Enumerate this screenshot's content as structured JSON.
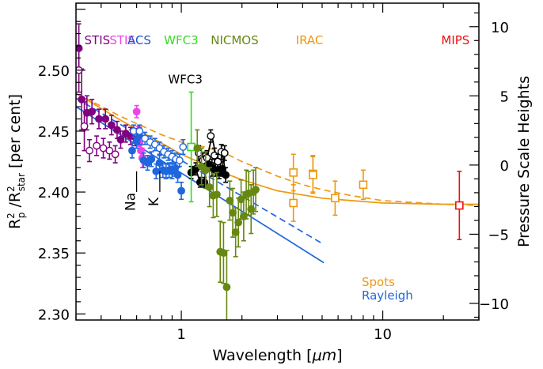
{
  "chart_data": {
    "type": "scatter",
    "xscale": "log",
    "xlim": [
      0.3,
      30
    ],
    "ylim": [
      2.295,
      2.555
    ],
    "y2lim": [
      -11.2,
      11.7
    ],
    "xlabel": "Wavelength [",
    "xlabel_unit": "μm",
    "xlabel_close": "]",
    "ylabel": "R²p / R²star  [per cent]",
    "ylabel_parts": {
      "R1": "R",
      "sup1": "2",
      "sub1": "p",
      "slash": " /R",
      "sup2": "2",
      "sub2": "star",
      "unit": "  [per cent]"
    },
    "y2label": "Pressure Scale Heights",
    "x_tick_labels": [
      {
        "v": 1,
        "label": "1"
      },
      {
        "v": 10,
        "label": "10"
      }
    ],
    "y_tick_labels": [
      {
        "v": 2.3,
        "label": "2.30"
      },
      {
        "v": 2.35,
        "label": "2.35"
      },
      {
        "v": 2.4,
        "label": "2.40"
      },
      {
        "v": 2.45,
        "label": "2.45"
      },
      {
        "v": 2.5,
        "label": "2.50"
      }
    ],
    "y2_tick_labels": [
      {
        "v": -10,
        "label": "−10"
      },
      {
        "v": -5,
        "label": "−5"
      },
      {
        "v": 0,
        "label": "0"
      },
      {
        "v": 5,
        "label": "5"
      },
      {
        "v": 10,
        "label": "10"
      }
    ],
    "instrument_labels": [
      {
        "text": "STIS",
        "color": "#800080",
        "x": 0.33
      },
      {
        "text": "STIS",
        "color": "#ee44ee",
        "x": 0.44
      },
      {
        "text": "ACS",
        "color": "#2255cc",
        "x": 0.54
      },
      {
        "text": "WFC3",
        "color": "#33dd22",
        "x": 0.82
      },
      {
        "text": "NICMOS",
        "color": "#668811",
        "x": 1.4
      },
      {
        "text": "IRAC",
        "color": "#ee9911",
        "x": 3.7
      },
      {
        "text": "MIPS",
        "color": "#ee1111",
        "x": 19.5
      },
      {
        "text": "WFC3",
        "color": "#000000",
        "x": 0.86,
        "y": 2.493
      }
    ],
    "annotations": [
      {
        "text": "Na",
        "x": 0.589,
        "y": 2.392
      },
      {
        "text": "K",
        "x": 0.768,
        "y": 2.392
      }
    ],
    "legend": [
      {
        "text": "Spots",
        "color": "#ee9911"
      },
      {
        "text": "Rayleigh",
        "color": "#1f66dd"
      }
    ],
    "models": [
      {
        "name": "Spots solid",
        "color": "#ee9911",
        "dash": false,
        "x": [
          0.3,
          0.5,
          0.8,
          1.0,
          1.5,
          2.0,
          3.0,
          5.0,
          7.0,
          10.0,
          20.0,
          30.0
        ],
        "y": [
          2.481,
          2.459,
          2.44,
          2.431,
          2.418,
          2.41,
          2.401,
          2.395,
          2.393,
          2.391,
          2.39,
          2.39
        ]
      },
      {
        "name": "Spots dashed",
        "color": "#ee9911",
        "dash": true,
        "x": [
          0.3,
          0.5,
          0.8,
          1.0,
          1.3,
          1.6,
          2.0,
          3.0,
          4.0,
          5.0,
          7.0,
          10.0,
          20.0,
          30.0
        ],
        "y": [
          2.481,
          2.462,
          2.447,
          2.441,
          2.437,
          2.433,
          2.425,
          2.413,
          2.406,
          2.402,
          2.397,
          2.393,
          2.39,
          2.389
        ]
      },
      {
        "name": "Rayleigh solid",
        "color": "#1f66dd",
        "dash": false,
        "x": [
          0.3,
          5.1
        ],
        "y": [
          2.47,
          2.342
        ]
      },
      {
        "name": "Rayleigh dashed",
        "color": "#1f66dd",
        "dash": true,
        "x": [
          0.3,
          5.1
        ],
        "y": [
          2.477,
          2.357
        ]
      },
      {
        "name": "WFC3 black line",
        "color": "#000000",
        "dash": false,
        "x": [
          1.12,
          1.18,
          1.24,
          1.3,
          1.36,
          1.42,
          1.48,
          1.54,
          1.6,
          1.66
        ],
        "y": [
          2.416,
          2.419,
          2.408,
          2.408,
          2.432,
          2.446,
          2.431,
          2.416,
          2.433,
          2.414
        ]
      }
    ],
    "series": [
      {
        "name": "STIS (purple, filled)",
        "color": "#800080",
        "marker": "circle",
        "filled": true,
        "x": [
          0.31,
          0.32,
          0.34,
          0.36,
          0.39,
          0.42,
          0.45,
          0.48,
          0.5,
          0.53,
          0.56,
          0.59
        ],
        "y": [
          2.518,
          2.476,
          2.465,
          2.466,
          2.46,
          2.46,
          2.455,
          2.451,
          2.443,
          2.448,
          2.446,
          2.445
        ],
        "err": [
          0.02,
          0.025,
          0.014,
          0.01,
          0.008,
          0.008,
          0.008,
          0.007,
          0.007,
          0.007,
          0.007,
          0.007
        ]
      },
      {
        "name": "STIS (purple, open)",
        "color": "#800080",
        "marker": "circle",
        "filled": false,
        "x": [
          0.31,
          0.33,
          0.35,
          0.38,
          0.41,
          0.44,
          0.47
        ],
        "y": [
          2.5,
          2.454,
          2.434,
          2.438,
          2.436,
          2.434,
          2.431
        ],
        "err": [
          0.018,
          0.02,
          0.009,
          0.008,
          0.008,
          0.007,
          0.007
        ]
      },
      {
        "name": "STIS (pink)",
        "color": "#ee44ee",
        "marker": "circle",
        "filled": true,
        "x": [
          0.6,
          0.61,
          0.62,
          0.63,
          0.64
        ],
        "y": [
          2.466,
          2.448,
          2.44,
          2.434,
          2.428
        ],
        "err": [
          0.005,
          0.006,
          0.006,
          0.007,
          0.008
        ]
      },
      {
        "name": "ACS (blue, filled)",
        "color": "#1f66dd",
        "marker": "circle",
        "filled": true,
        "x": [
          0.57,
          0.6,
          0.62,
          0.65,
          0.68,
          0.71,
          0.75,
          0.78,
          0.81,
          0.84,
          0.87,
          0.9,
          0.93,
          0.96,
          1.0
        ],
        "y": [
          2.434,
          2.442,
          2.446,
          2.426,
          2.424,
          2.427,
          2.417,
          2.424,
          2.418,
          2.417,
          2.418,
          2.417,
          2.419,
          2.414,
          2.401
        ],
        "err": [
          0.006,
          0.006,
          0.007,
          0.006,
          0.006,
          0.006,
          0.006,
          0.006,
          0.006,
          0.006,
          0.006,
          0.006,
          0.006,
          0.006,
          0.007
        ]
      },
      {
        "name": "ACS (blue, open)",
        "color": "#1f66dd",
        "marker": "circle",
        "filled": false,
        "x": [
          0.58,
          0.62,
          0.66,
          0.7,
          0.74,
          0.78,
          0.82,
          0.86,
          0.9,
          0.94,
          0.98,
          1.02
        ],
        "y": [
          2.45,
          2.45,
          2.444,
          2.441,
          2.439,
          2.436,
          2.433,
          2.431,
          2.429,
          2.427,
          2.426,
          2.437
        ],
        "err": [
          0.005,
          0.005,
          0.005,
          0.005,
          0.005,
          0.005,
          0.005,
          0.005,
          0.005,
          0.005,
          0.005,
          0.006
        ]
      },
      {
        "name": "WFC3 (black, filled)",
        "color": "#000000",
        "marker": "circle",
        "filled": true,
        "x": [
          1.12,
          1.18,
          1.24,
          1.3,
          1.36,
          1.42,
          1.48,
          1.54,
          1.6,
          1.66
        ],
        "y": [
          2.416,
          2.419,
          2.408,
          2.408,
          2.423,
          2.42,
          2.418,
          2.416,
          2.419,
          2.414
        ],
        "err": [
          0.005,
          0.005,
          0.004,
          0.004,
          0.006,
          0.007,
          0.005,
          0.005,
          0.006,
          0.006
        ]
      },
      {
        "name": "WFC3 (black, open)",
        "color": "#000000",
        "marker": "circle",
        "filled": false,
        "x": [
          1.22,
          1.28,
          1.34,
          1.4,
          1.46,
          1.52,
          1.58,
          1.64
        ],
        "y": [
          2.432,
          2.426,
          2.428,
          2.446,
          2.43,
          2.425,
          2.433,
          2.432
        ],
        "err": [
          0.006,
          0.006,
          0.006,
          0.005,
          0.006,
          0.006,
          0.006,
          0.006
        ]
      },
      {
        "name": "WFC3 (green, open square)",
        "color": "#33dd22",
        "marker": "square",
        "filled": false,
        "x": [
          1.12
        ],
        "y": [
          2.437
        ],
        "err": [
          0.045
        ]
      },
      {
        "name": "NICMOS",
        "color": "#668811",
        "marker": "circle",
        "filled": true,
        "x": [
          1.2,
          1.26,
          1.32,
          1.38,
          1.44,
          1.5,
          1.56,
          1.62,
          1.68,
          1.74,
          1.8,
          1.86,
          1.92,
          1.98,
          2.04,
          2.1,
          2.16,
          2.22,
          2.28,
          2.34
        ],
        "y": [
          2.436,
          2.421,
          2.418,
          2.404,
          2.397,
          2.398,
          2.351,
          2.35,
          2.322,
          2.393,
          2.383,
          2.367,
          2.375,
          2.394,
          2.38,
          2.398,
          2.399,
          2.386,
          2.4,
          2.402
        ],
        "err": [
          0.015,
          0.015,
          0.015,
          0.016,
          0.018,
          0.018,
          0.025,
          0.025,
          0.03,
          0.016,
          0.02,
          0.02,
          0.02,
          0.016,
          0.02,
          0.02,
          0.018,
          0.02,
          0.018,
          0.018
        ]
      },
      {
        "name": "IRAC",
        "color": "#ee9911",
        "marker": "square",
        "filled": false,
        "x": [
          3.6,
          3.6,
          4.5,
          4.5,
          5.8,
          8.0
        ],
        "y": [
          2.416,
          2.391,
          2.415,
          2.414,
          2.395,
          2.406
        ],
        "err": [
          0.015,
          0.015,
          0.015,
          0.015,
          0.014,
          0.012
        ]
      },
      {
        "name": "MIPS",
        "color": "#ee1111",
        "marker": "square",
        "filled": false,
        "x": [
          24.0
        ],
        "y": [
          2.389
        ],
        "err": [
          0.028
        ]
      }
    ]
  }
}
